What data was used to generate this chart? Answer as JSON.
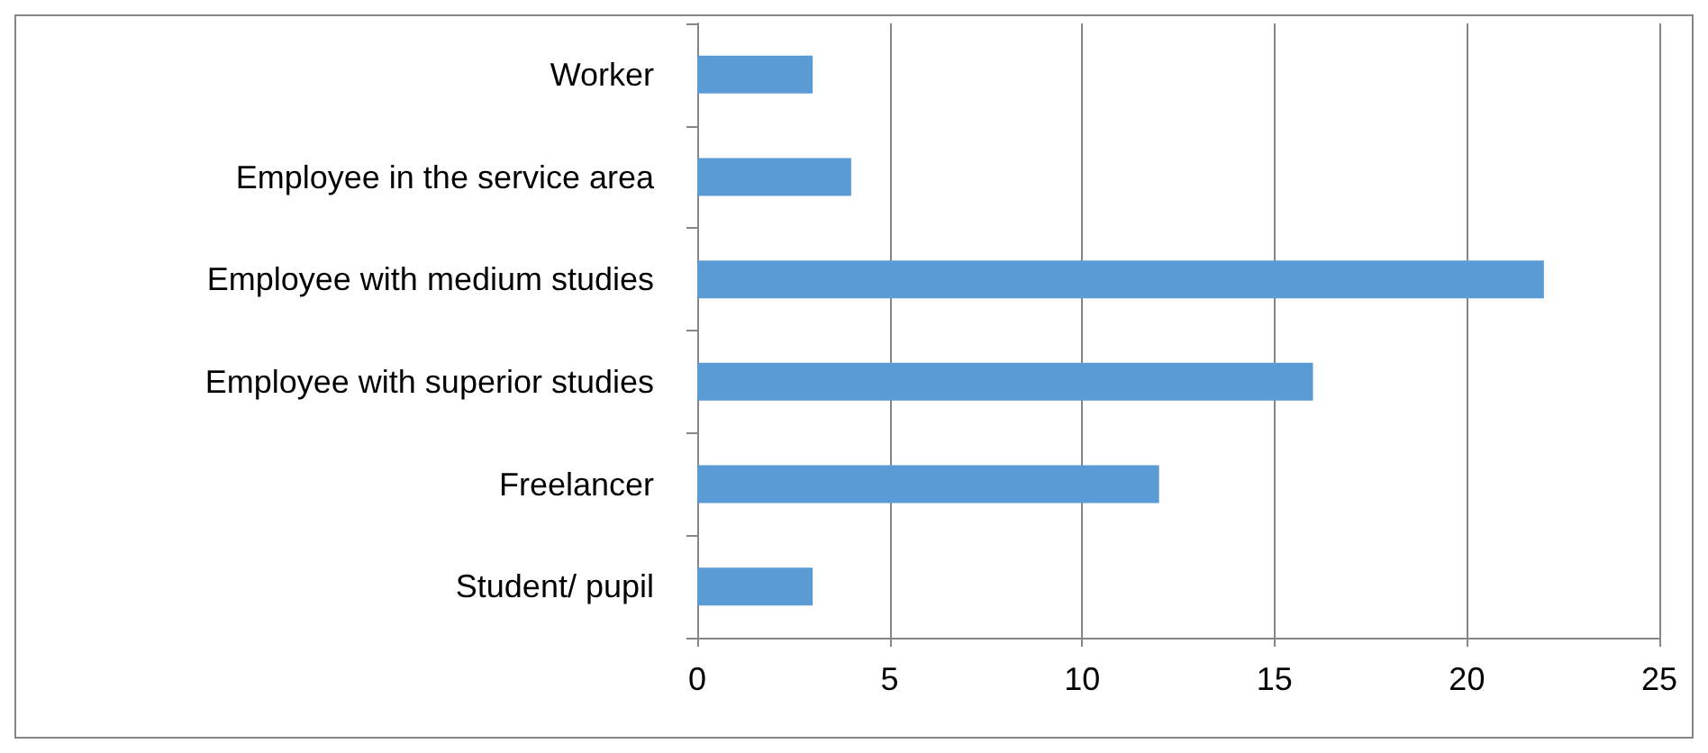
{
  "chart_data": {
    "type": "bar",
    "orientation": "horizontal",
    "categories": [
      "Worker",
      "Employee in the service area",
      "Employee with medium studies",
      "Employee with superior studies",
      "Freelancer",
      "Student/ pupil"
    ],
    "series": [
      {
        "color": "#5b9bd5",
        "values": [
          3,
          4,
          22,
          16,
          12,
          3
        ]
      }
    ],
    "xlim": [
      0,
      25
    ],
    "xticks": [
      0,
      5,
      10,
      15,
      20,
      25
    ],
    "grid": "x"
  }
}
